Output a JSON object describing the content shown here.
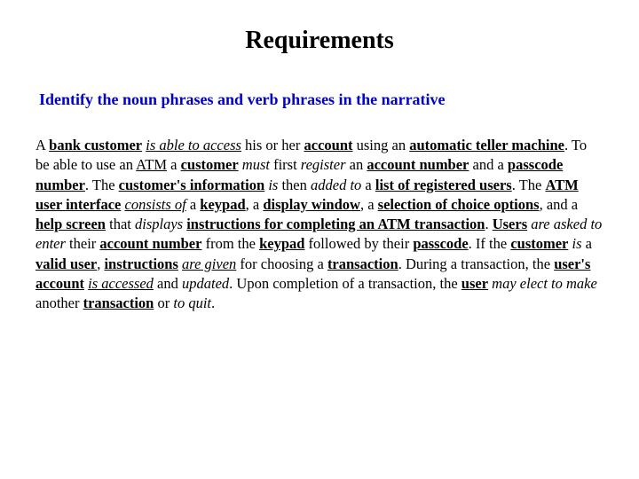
{
  "title": "Requirements",
  "subtitle": "Identify the noun phrases and verb phrases in the narrative",
  "paragraph": {
    "runs": [
      {
        "t": "A ",
        "b": false,
        "i": false,
        "u": false
      },
      {
        "t": "bank customer",
        "b": true,
        "i": false,
        "u": true
      },
      {
        "t": " ",
        "b": false,
        "i": false,
        "u": false
      },
      {
        "t": "is able to access",
        "b": false,
        "i": true,
        "u": true
      },
      {
        "t": " his or her ",
        "b": false,
        "i": false,
        "u": false
      },
      {
        "t": "account",
        "b": true,
        "i": false,
        "u": true
      },
      {
        "t": " using an ",
        "b": false,
        "i": false,
        "u": false
      },
      {
        "t": "automatic teller machine",
        "b": true,
        "i": false,
        "u": true
      },
      {
        "t": ".  To be able to use an ",
        "b": false,
        "i": false,
        "u": false
      },
      {
        "t": "ATM",
        "b": false,
        "i": false,
        "u": true
      },
      {
        "t": " a ",
        "b": false,
        "i": false,
        "u": false
      },
      {
        "t": "customer",
        "b": true,
        "i": false,
        "u": true
      },
      {
        "t": " ",
        "b": false,
        "i": false,
        "u": false
      },
      {
        "t": "must",
        "b": false,
        "i": true,
        "u": false
      },
      {
        "t": " first ",
        "b": false,
        "i": false,
        "u": false
      },
      {
        "t": "register",
        "b": false,
        "i": true,
        "u": false
      },
      {
        "t": " an ",
        "b": false,
        "i": false,
        "u": false
      },
      {
        "t": "account number",
        "b": true,
        "i": false,
        "u": true
      },
      {
        "t": " and a ",
        "b": false,
        "i": false,
        "u": false
      },
      {
        "t": "passcode number",
        "b": true,
        "i": false,
        "u": true
      },
      {
        "t": ".  The ",
        "b": false,
        "i": false,
        "u": false
      },
      {
        "t": "customer's information",
        "b": true,
        "i": false,
        "u": true
      },
      {
        "t": " ",
        "b": false,
        "i": false,
        "u": false
      },
      {
        "t": "is",
        "b": false,
        "i": true,
        "u": false
      },
      {
        "t": " then ",
        "b": false,
        "i": false,
        "u": false
      },
      {
        "t": "added to",
        "b": false,
        "i": true,
        "u": false
      },
      {
        "t": " a ",
        "b": false,
        "i": false,
        "u": false
      },
      {
        "t": "list of registered users",
        "b": true,
        "i": false,
        "u": true
      },
      {
        "t": ".  The ",
        "b": false,
        "i": false,
        "u": false
      },
      {
        "t": "ATM user interface",
        "b": true,
        "i": false,
        "u": true
      },
      {
        "t": " ",
        "b": false,
        "i": false,
        "u": false
      },
      {
        "t": "consists of",
        "b": false,
        "i": true,
        "u": true
      },
      {
        "t": " a ",
        "b": false,
        "i": false,
        "u": false
      },
      {
        "t": "keypad",
        "b": true,
        "i": false,
        "u": true
      },
      {
        "t": ", a ",
        "b": false,
        "i": false,
        "u": false
      },
      {
        "t": "display window",
        "b": true,
        "i": false,
        "u": true
      },
      {
        "t": ", a ",
        "b": false,
        "i": false,
        "u": false
      },
      {
        "t": "selection of choice options",
        "b": true,
        "i": false,
        "u": true
      },
      {
        "t": ", and a ",
        "b": false,
        "i": false,
        "u": false
      },
      {
        "t": "help screen",
        "b": true,
        "i": false,
        "u": true
      },
      {
        "t": " that ",
        "b": false,
        "i": false,
        "u": false
      },
      {
        "t": "displays",
        "b": false,
        "i": true,
        "u": false
      },
      {
        "t": " ",
        "b": false,
        "i": false,
        "u": false
      },
      {
        "t": "instructions for completing an ATM transaction",
        "b": true,
        "i": false,
        "u": true
      },
      {
        "t": ".  ",
        "b": false,
        "i": false,
        "u": false
      },
      {
        "t": "Users",
        "b": true,
        "i": false,
        "u": true
      },
      {
        "t": " ",
        "b": false,
        "i": false,
        "u": false
      },
      {
        "t": "are asked to enter",
        "b": false,
        "i": true,
        "u": false
      },
      {
        "t": " their ",
        "b": false,
        "i": false,
        "u": false
      },
      {
        "t": "account number",
        "b": true,
        "i": false,
        "u": true
      },
      {
        "t": " from the ",
        "b": false,
        "i": false,
        "u": false
      },
      {
        "t": "keypad",
        "b": true,
        "i": false,
        "u": true
      },
      {
        "t": " followed by their ",
        "b": false,
        "i": false,
        "u": false
      },
      {
        "t": "passcode",
        "b": true,
        "i": false,
        "u": true
      },
      {
        "t": ".  If the ",
        "b": false,
        "i": false,
        "u": false
      },
      {
        "t": "customer",
        "b": true,
        "i": false,
        "u": true
      },
      {
        "t": " ",
        "b": false,
        "i": false,
        "u": false
      },
      {
        "t": "is",
        "b": false,
        "i": true,
        "u": false
      },
      {
        "t": " a ",
        "b": false,
        "i": false,
        "u": false
      },
      {
        "t": "valid user",
        "b": true,
        "i": false,
        "u": true
      },
      {
        "t": ", ",
        "b": false,
        "i": false,
        "u": false
      },
      {
        "t": "instructions",
        "b": true,
        "i": false,
        "u": true
      },
      {
        "t": " ",
        "b": false,
        "i": false,
        "u": false
      },
      {
        "t": "are given",
        "b": false,
        "i": true,
        "u": true
      },
      {
        "t": " for choosing a ",
        "b": false,
        "i": false,
        "u": false
      },
      {
        "t": "transaction",
        "b": true,
        "i": false,
        "u": true
      },
      {
        "t": ".  During a transaction, the ",
        "b": false,
        "i": false,
        "u": false
      },
      {
        "t": "user's account",
        "b": true,
        "i": false,
        "u": true
      },
      {
        "t": " ",
        "b": false,
        "i": false,
        "u": false
      },
      {
        "t": "is accessed",
        "b": false,
        "i": true,
        "u": true
      },
      {
        "t": " and ",
        "b": false,
        "i": false,
        "u": false
      },
      {
        "t": "updated",
        "b": false,
        "i": true,
        "u": false
      },
      {
        "t": ".  Upon completion of a transaction, the ",
        "b": false,
        "i": false,
        "u": false
      },
      {
        "t": "user",
        "b": true,
        "i": false,
        "u": true
      },
      {
        "t": " ",
        "b": false,
        "i": false,
        "u": false
      },
      {
        "t": "may elect to make",
        "b": false,
        "i": true,
        "u": false
      },
      {
        "t": " another ",
        "b": false,
        "i": false,
        "u": false
      },
      {
        "t": "transaction",
        "b": true,
        "i": false,
        "u": true
      },
      {
        "t": " or ",
        "b": false,
        "i": false,
        "u": false
      },
      {
        "t": "to quit",
        "b": false,
        "i": true,
        "u": false
      },
      {
        "t": ".",
        "b": false,
        "i": false,
        "u": false
      }
    ]
  },
  "colors": {
    "background": "#ffffff",
    "text": "#000000",
    "subtitle": "#0000cc"
  },
  "fonts": {
    "family": "Times New Roman",
    "title_size_pt": 28,
    "subtitle_size_pt": 18,
    "body_size_pt": 16.5
  }
}
